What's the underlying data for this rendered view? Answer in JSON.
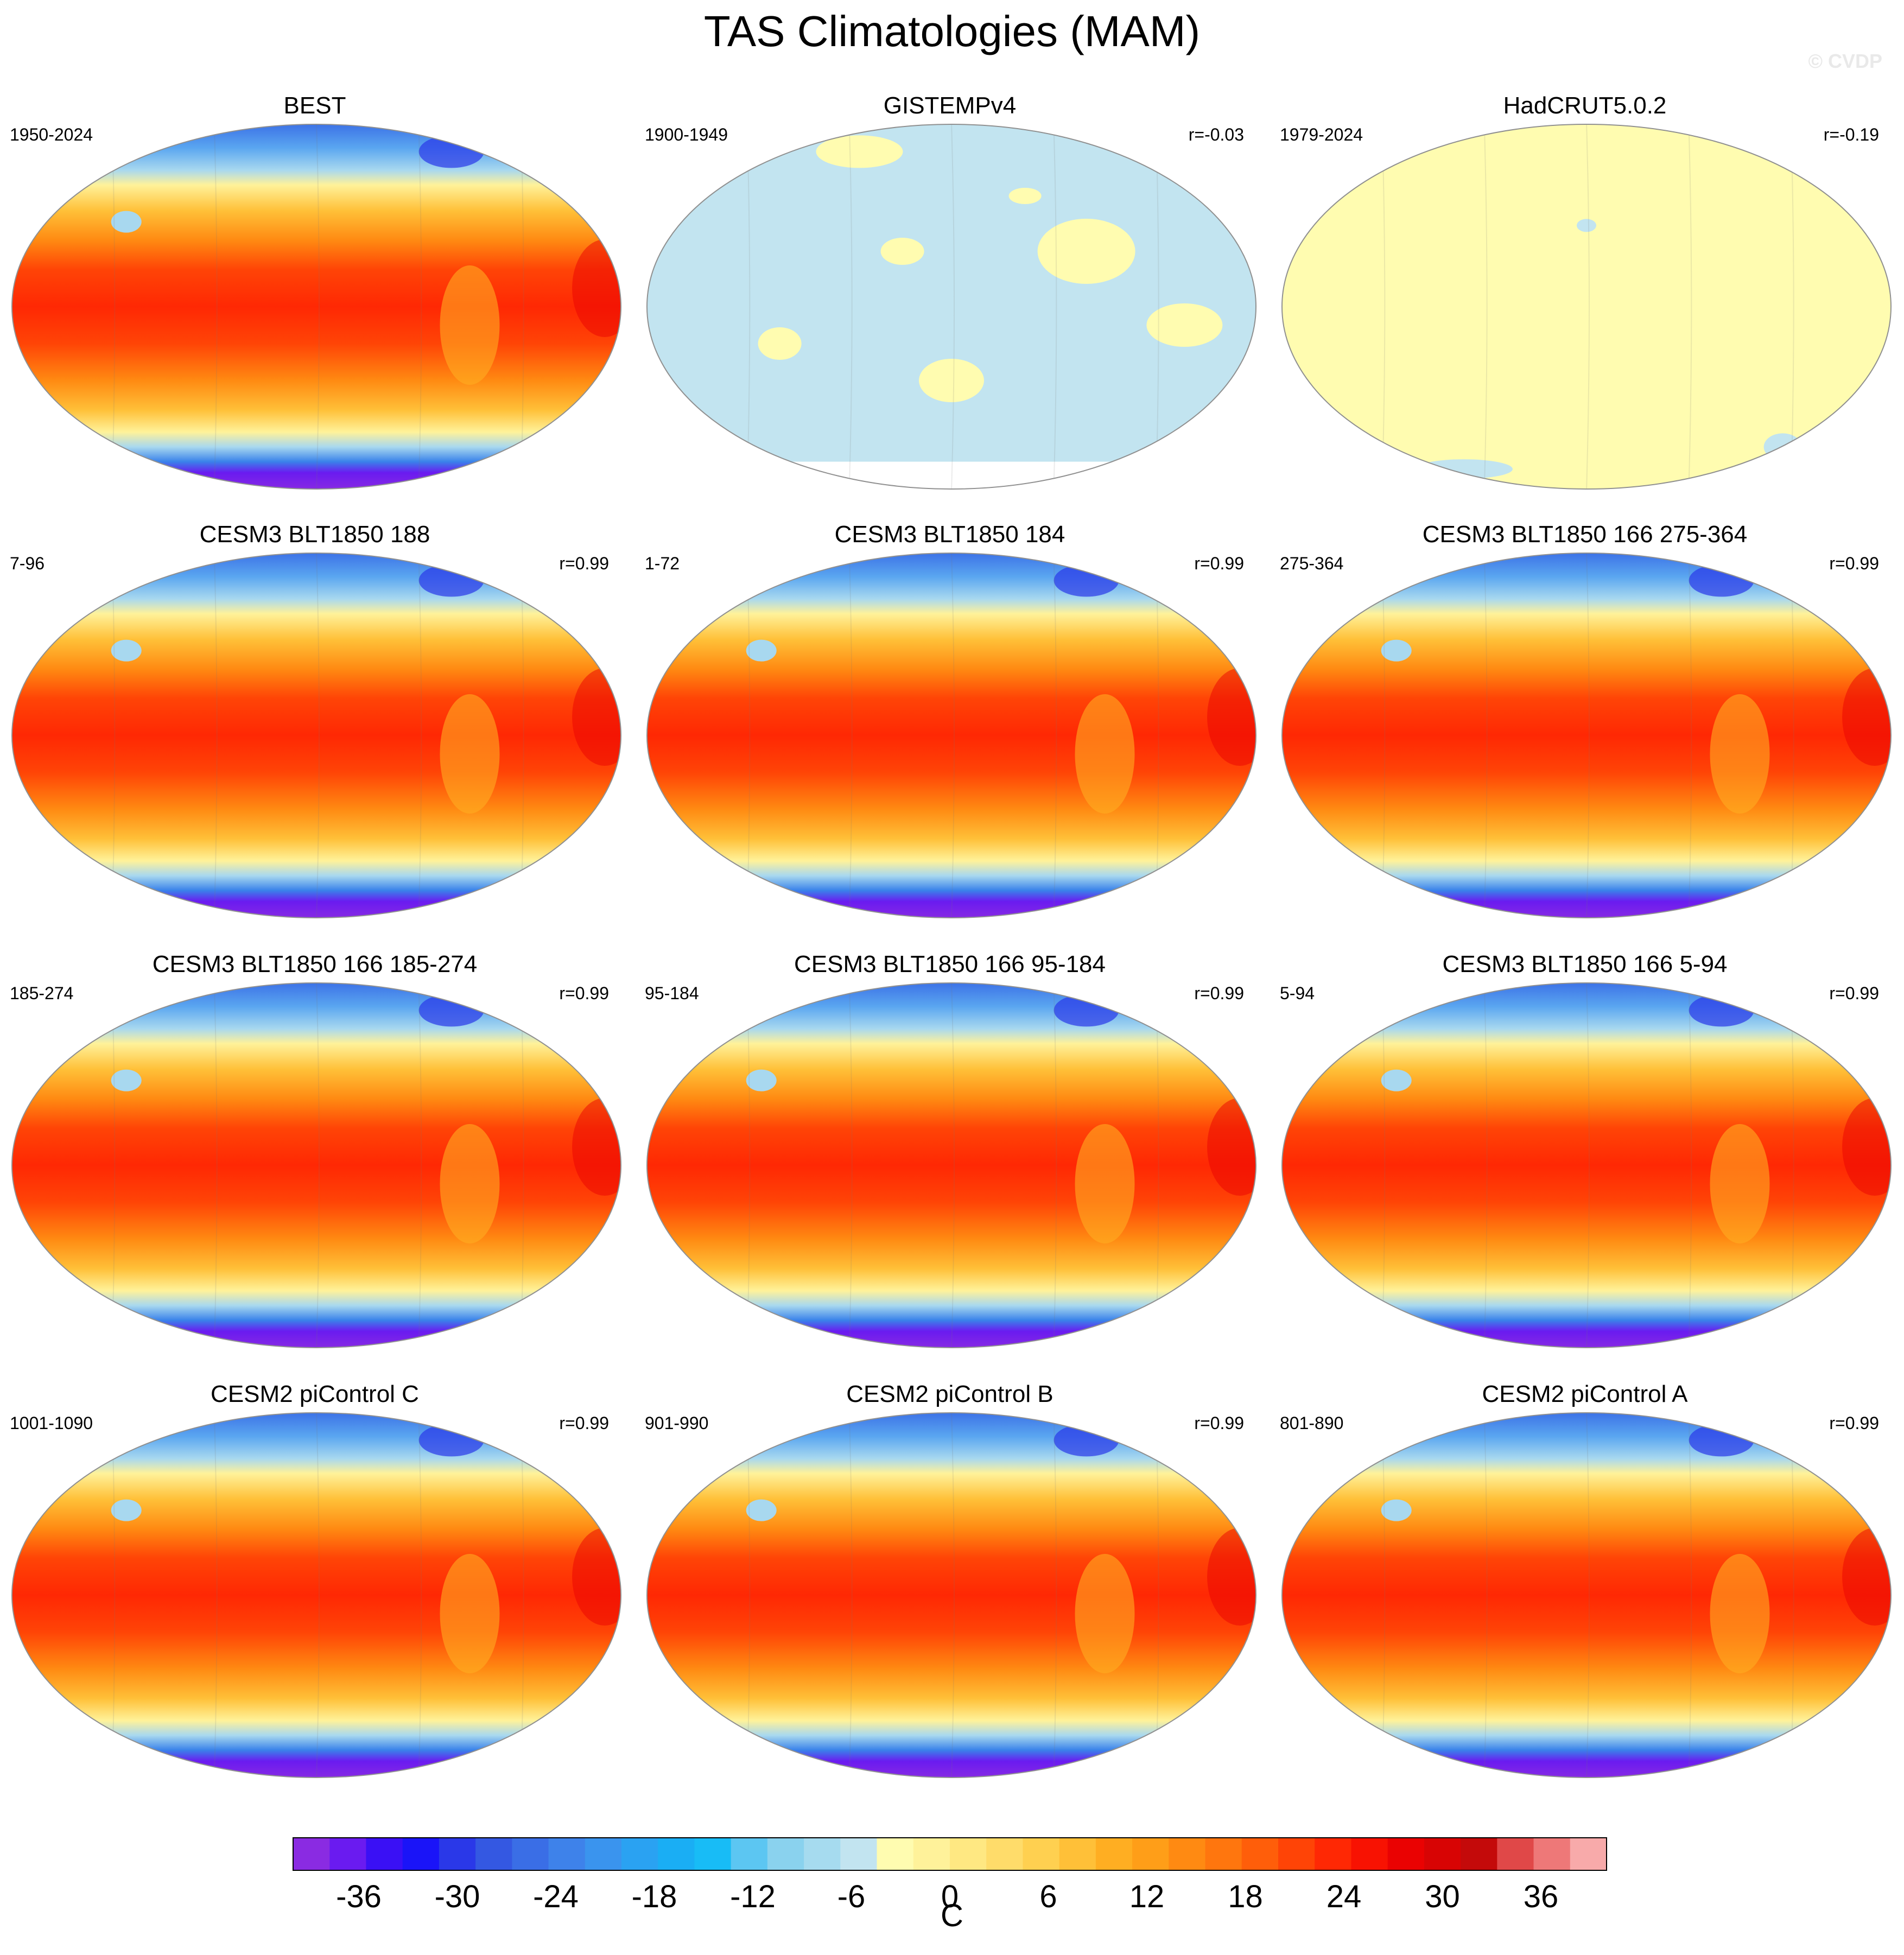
{
  "title": "TAS Climatologies (MAM)",
  "watermark": "© CVDP",
  "panels": [
    {
      "title": "BEST",
      "left": "1950-2024",
      "right": "",
      "style": "warm"
    },
    {
      "title": "GISTEMPv4",
      "left": "1900-1949",
      "right": "r=-0.03",
      "style": "pale-blue"
    },
    {
      "title": "HadCRUT5.0.2",
      "left": "1979-2024",
      "right": "r=-0.19",
      "style": "pale-yellow"
    },
    {
      "title": "CESM3 BLT1850 188",
      "left": "7-96",
      "right": "r=0.99",
      "style": "warm"
    },
    {
      "title": "CESM3 BLT1850 184",
      "left": "1-72",
      "right": "r=0.99",
      "style": "warm"
    },
    {
      "title": "CESM3 BLT1850 166 275-364",
      "left": "275-364",
      "right": "r=0.99",
      "style": "warm"
    },
    {
      "title": "CESM3 BLT1850 166 185-274",
      "left": "185-274",
      "right": "r=0.99",
      "style": "warm"
    },
    {
      "title": "CESM3 BLT1850 166 95-184",
      "left": "95-184",
      "right": "r=0.99",
      "style": "warm"
    },
    {
      "title": "CESM3 BLT1850 166 5-94",
      "left": "5-94",
      "right": "r=0.99",
      "style": "warm"
    },
    {
      "title": "CESM2 piControl C",
      "left": "1001-1090",
      "right": "r=0.99",
      "style": "warm"
    },
    {
      "title": "CESM2 piControl B",
      "left": "901-990",
      "right": "r=0.99",
      "style": "warm"
    },
    {
      "title": "CESM2 piControl A",
      "left": "801-890",
      "right": "r=0.99",
      "style": "warm"
    }
  ],
  "colorbar": {
    "units": "C",
    "levels": [
      -40,
      40
    ],
    "tick_labels": [
      "-36",
      "-30",
      "-24",
      "-18",
      "-12",
      "-6",
      "0",
      "6",
      "12",
      "18",
      "24",
      "30",
      "36"
    ],
    "colors": [
      "#8a2be2",
      "#6a1bf0",
      "#3a10f5",
      "#1a14f8",
      "#2a38e8",
      "#3458e2",
      "#3a6ee6",
      "#3e82ea",
      "#3a94ee",
      "#2aa2f2",
      "#1aaef4",
      "#18bcf6",
      "#5cc6f2",
      "#8ad2ee",
      "#a6dbef",
      "#c2e4f0",
      "#fffcb0",
      "#fff29a",
      "#ffe882",
      "#ffdc6a",
      "#ffd050",
      "#ffc038",
      "#ffae22",
      "#ff9e18",
      "#ff8a12",
      "#ff760e",
      "#ff5e0a",
      "#ff4406",
      "#ff2804",
      "#f81202",
      "#ea0202",
      "#d80404",
      "#c40a0a",
      "#e04848",
      "#ee7878",
      "#f8aaaa"
    ]
  }
}
